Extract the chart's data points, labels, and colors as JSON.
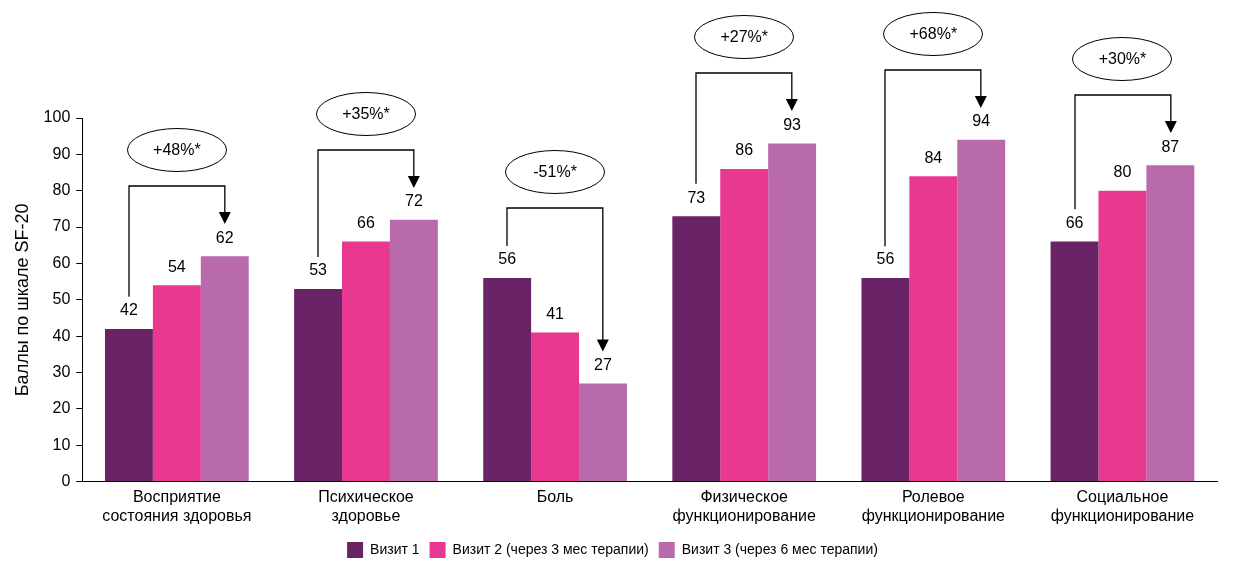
{
  "chart_data": {
    "type": "bar",
    "ylabel": "Баллы по шкале SF-20",
    "categories": [
      "Восприятие состояния здоровья",
      "Психическое здоровье",
      "Боль",
      "Физическое функционирование",
      "Ролевое функционирование",
      "Социальное функционирование"
    ],
    "series": [
      {
        "name": "Визит 1",
        "color": "#6b2367",
        "values": [
          42,
          53,
          56,
          73,
          56,
          66
        ]
      },
      {
        "name": "Визит 2 (через 3 мес терапии)",
        "color": "#e8388f",
        "values": [
          54,
          66,
          41,
          86,
          84,
          80
        ]
      },
      {
        "name": "Визит 3 (через 6 мес терапии)",
        "color": "#b96aad",
        "values": [
          62,
          72,
          27,
          93,
          94,
          87
        ]
      }
    ],
    "ylim": [
      0,
      100
    ],
    "yticks": [
      0,
      10,
      20,
      30,
      40,
      50,
      60,
      70,
      80,
      90,
      100
    ],
    "grid": false,
    "legend": "bottom",
    "data_labels": true,
    "annotations": [
      "+48%*",
      "+35%*",
      "-51%*",
      "+27%*",
      "+68%*",
      "+30%*"
    ]
  }
}
